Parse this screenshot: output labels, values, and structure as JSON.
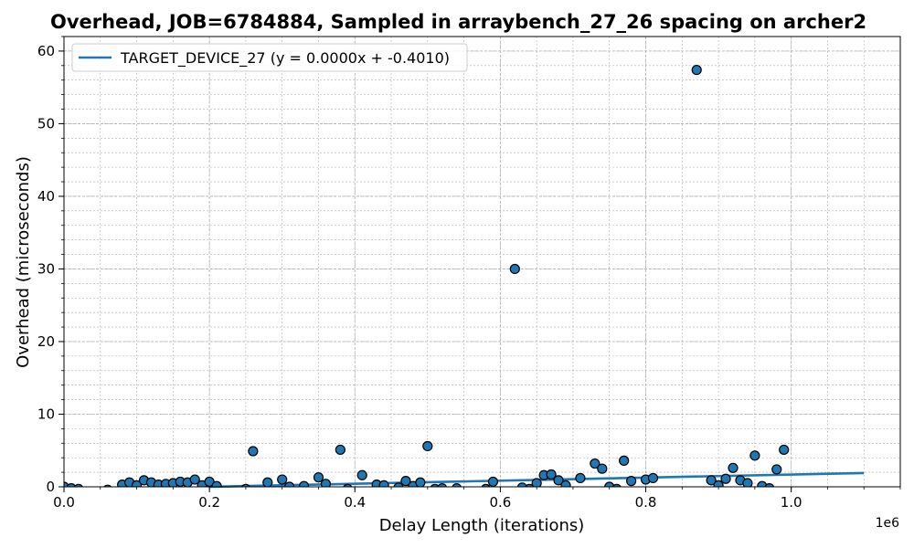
{
  "chart_data": {
    "type": "scatter",
    "title": "Overhead, JOB=6784884, Sampled in arraybench_27_26 spacing on archer2",
    "xlabel": "Delay Length (iterations)",
    "ylabel": "Overhead (microseconds)",
    "x_offset_label": "1e6",
    "xlim": [
      0,
      1150000
    ],
    "ylim": [
      0,
      62
    ],
    "x_ticks": [
      0,
      200000,
      400000,
      600000,
      800000,
      1000000
    ],
    "x_tick_labels": [
      "0.0",
      "0.2",
      "0.4",
      "0.6",
      "0.8",
      "1.0"
    ],
    "y_ticks": [
      0,
      10,
      20,
      30,
      40,
      50,
      60
    ],
    "y_tick_labels": [
      "0",
      "10",
      "20",
      "30",
      "40",
      "50",
      "60"
    ],
    "grid": true,
    "legend_position": "top-left",
    "colors": {
      "marker": "#1f77b4",
      "marker_edge": "#000000",
      "fit_line": "#1f77b4",
      "grid": "#b0b0b0"
    },
    "series": [
      {
        "name": "TARGET_DEVICE_27 (y = 0.0000x + -0.4010)",
        "type": "line",
        "x": [
          200000,
          1100000
        ],
        "y": [
          0.0,
          1.9
        ]
      },
      {
        "type": "scatter",
        "points": [
          [
            0,
            0.0
          ],
          [
            10000,
            -0.2
          ],
          [
            20000,
            -0.3
          ],
          [
            60000,
            -0.4
          ],
          [
            80000,
            0.3
          ],
          [
            90000,
            0.6
          ],
          [
            100000,
            0.2
          ],
          [
            110000,
            0.9
          ],
          [
            120000,
            0.6
          ],
          [
            130000,
            0.3
          ],
          [
            140000,
            0.4
          ],
          [
            150000,
            0.5
          ],
          [
            160000,
            0.7
          ],
          [
            170000,
            0.6
          ],
          [
            180000,
            1.0
          ],
          [
            190000,
            0.2
          ],
          [
            200000,
            0.7
          ],
          [
            210000,
            0.1
          ],
          [
            250000,
            -0.3
          ],
          [
            260000,
            4.9
          ],
          [
            280000,
            0.6
          ],
          [
            300000,
            1.0
          ],
          [
            310000,
            0.0
          ],
          [
            330000,
            0.1
          ],
          [
            350000,
            1.3
          ],
          [
            360000,
            0.4
          ],
          [
            380000,
            5.1
          ],
          [
            390000,
            -0.3
          ],
          [
            410000,
            1.6
          ],
          [
            430000,
            0.3
          ],
          [
            440000,
            0.2
          ],
          [
            460000,
            -0.1
          ],
          [
            470000,
            0.8
          ],
          [
            480000,
            0.1
          ],
          [
            490000,
            0.6
          ],
          [
            500000,
            5.6
          ],
          [
            510000,
            -0.3
          ],
          [
            520000,
            -0.2
          ],
          [
            540000,
            -0.2
          ],
          [
            580000,
            -0.3
          ],
          [
            590000,
            0.7
          ],
          [
            620000,
            30.0
          ],
          [
            630000,
            -0.1
          ],
          [
            640000,
            -0.3
          ],
          [
            650000,
            0.5
          ],
          [
            660000,
            1.6
          ],
          [
            670000,
            1.7
          ],
          [
            680000,
            0.9
          ],
          [
            690000,
            0.2
          ],
          [
            710000,
            1.2
          ],
          [
            730000,
            3.2
          ],
          [
            740000,
            2.5
          ],
          [
            750000,
            0.0
          ],
          [
            760000,
            -0.3
          ],
          [
            770000,
            3.6
          ],
          [
            780000,
            0.8
          ],
          [
            800000,
            1.0
          ],
          [
            810000,
            1.2
          ],
          [
            870000,
            57.4
          ],
          [
            890000,
            0.9
          ],
          [
            900000,
            0.2
          ],
          [
            910000,
            1.1
          ],
          [
            920000,
            2.6
          ],
          [
            930000,
            0.9
          ],
          [
            940000,
            0.5
          ],
          [
            950000,
            4.3
          ],
          [
            960000,
            0.1
          ],
          [
            970000,
            -0.2
          ],
          [
            980000,
            2.4
          ],
          [
            990000,
            5.1
          ]
        ]
      }
    ]
  }
}
